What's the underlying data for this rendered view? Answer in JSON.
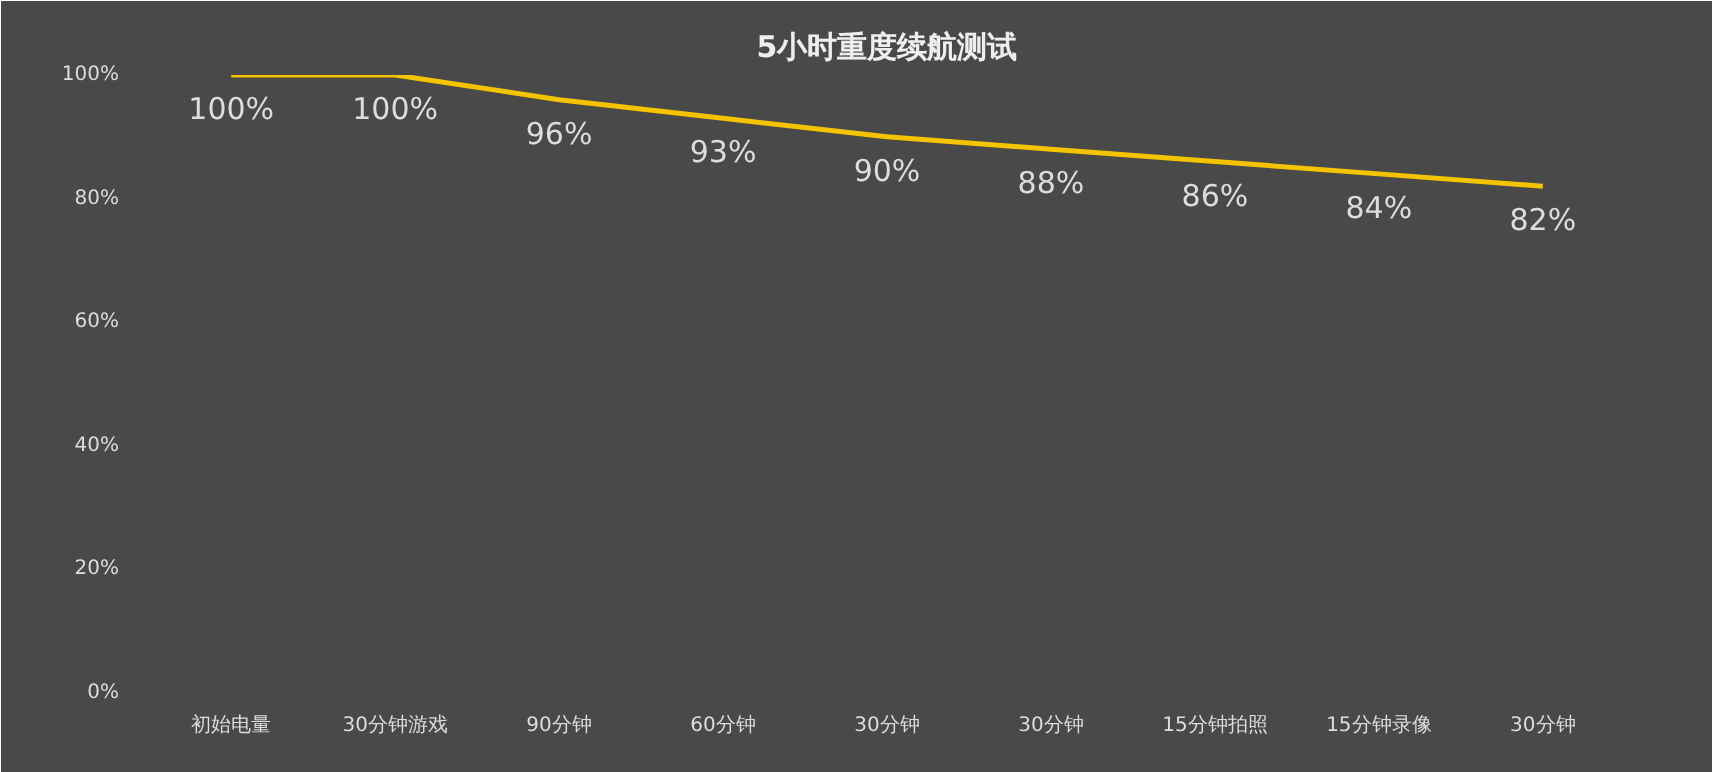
{
  "chart_data": {
    "type": "line",
    "title": "5小时重度续航测试",
    "categories": [
      "初始电量",
      "30分钟游戏",
      "90分钟",
      "60分钟",
      "30分钟",
      "30分钟",
      "15分钟拍照",
      "15分钟录像",
      "30分钟"
    ],
    "series": [
      {
        "color": "#f5c400",
        "values": [
          100,
          100,
          96,
          93,
          90,
          88,
          86,
          84,
          82
        ]
      }
    ],
    "value_labels": [
      "100%",
      "100%",
      "96%",
      "93%",
      "90%",
      "88%",
      "86%",
      "84%",
      "82%"
    ],
    "ylim": [
      0,
      100
    ],
    "yticks": [
      {
        "value": 0,
        "label": "0%"
      },
      {
        "value": 20,
        "label": "20%"
      },
      {
        "value": 40,
        "label": "40%"
      },
      {
        "value": 60,
        "label": "60%"
      },
      {
        "value": 80,
        "label": "80%"
      },
      {
        "value": 100,
        "label": "100%"
      }
    ],
    "grid": false,
    "marker": "none",
    "line_style": "solid"
  }
}
